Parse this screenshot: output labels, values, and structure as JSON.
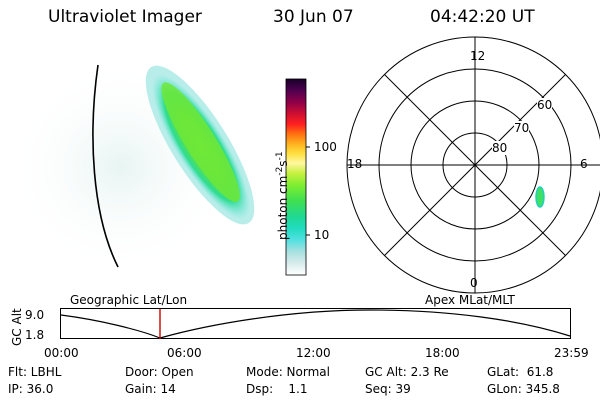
{
  "header": {
    "instrument": "Ultraviolet Imager",
    "date": "30 Jun 07",
    "time": "04:42:20 UT"
  },
  "colorbar": {
    "unit_label": "photon cm",
    "unit_exp1": "-2",
    "unit_s": "s",
    "unit_exp2": "-1",
    "ticks": [
      "100",
      "10"
    ],
    "colors": [
      "#ffffff",
      "#d8ecec",
      "#a8e0e0",
      "#60e0e0",
      "#20e0d0",
      "#10d8a0",
      "#40e050",
      "#80ee30",
      "#c8f040",
      "#fff8a0",
      "#ffe040",
      "#ffc020",
      "#ff8010",
      "#ff3020",
      "#e01030",
      "#b00040",
      "#700050",
      "#400050",
      "#180028"
    ]
  },
  "polar": {
    "hour_labels": {
      "top": "12",
      "left": "18",
      "right": "6",
      "bottom": "0"
    },
    "lat_labels": [
      "60",
      "70",
      "80"
    ]
  },
  "timeline": {
    "label_left": "Geographic Lat/Lon",
    "label_right": "Apex  MLat/MLT",
    "axis_label": "GC Alt",
    "y_top": "9.0",
    "y_bottom": "1.8",
    "x_ticks": [
      "00:00",
      "06:00",
      "12:00",
      "18:00",
      "23:59"
    ],
    "cursor_color": "#cc0000"
  },
  "info": {
    "filter": "Flt: LBHL",
    "ip": "IP: 36.0",
    "door": "Door: Open",
    "gain": "Gain: 14",
    "mode": "Mode: Normal",
    "dsp": "Dsp:    1.1",
    "gc_alt": "GC Alt: 2.3 Re",
    "seq": "Seq: 39",
    "glat": "GLat:  61.8",
    "glon": "GLon: 345.8"
  }
}
